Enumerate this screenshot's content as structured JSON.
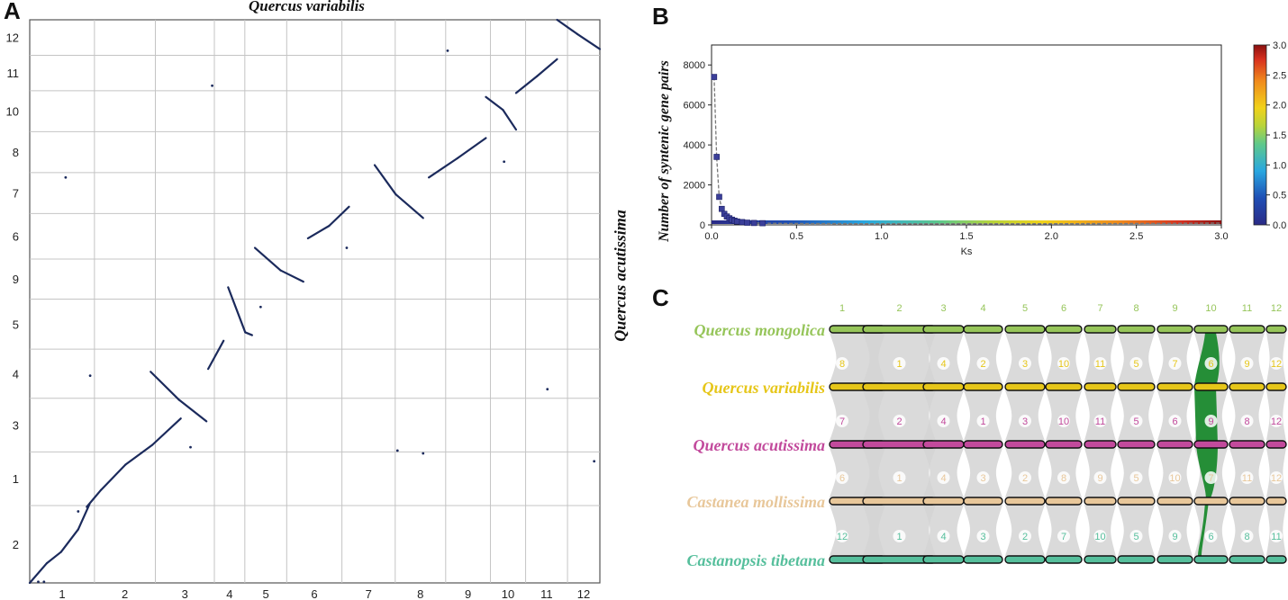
{
  "panels": {
    "a": {
      "label": "A",
      "title": "Quercus variabilis",
      "ylabel": "Quercus acutissima"
    },
    "b": {
      "label": "B"
    },
    "c": {
      "label": "C"
    }
  },
  "chart_data": [
    {
      "id": "A",
      "type": "scatter",
      "subtype": "dotplot",
      "title": "Quercus variabilis",
      "xlabel": "Quercus variabilis",
      "ylabel": "Quercus acutissima",
      "x_chromosomes": [
        "1",
        "2",
        "3",
        "4",
        "5",
        "6",
        "7",
        "8",
        "9",
        "10",
        "11",
        "12"
      ],
      "x_chrom_sizes": [
        68,
        64,
        62,
        32,
        44,
        58,
        56,
        53,
        47,
        37,
        44,
        34
      ],
      "y_chromosomes_bottom_to_top": [
        "2",
        "1",
        "3",
        "4",
        "5",
        "9",
        "6",
        "7",
        "8",
        "10",
        "11",
        "12"
      ],
      "y_chrom_sizes": [
        85,
        59,
        59,
        54,
        55,
        44,
        50,
        45,
        45,
        45,
        39,
        39
      ],
      "dot_color": "#1b2a5c",
      "segments": [
        {
          "x": [
            0.0,
            0.03
          ],
          "y": [
            0.0,
            0.035
          ]
        },
        {
          "x": [
            0.03,
            0.055
          ],
          "y": [
            0.035,
            0.055
          ]
        },
        {
          "x": [
            0.055,
            0.085
          ],
          "y": [
            0.055,
            0.095
          ]
        },
        {
          "x": [
            0.085,
            0.105
          ],
          "y": [
            0.095,
            0.14
          ]
        },
        {
          "x": [
            0.1,
            0.125
          ],
          "y": [
            0.135,
            0.165
          ]
        },
        {
          "x": [
            0.125,
            0.168
          ],
          "y": [
            0.165,
            0.21
          ]
        },
        {
          "x": [
            0.168,
            0.215
          ],
          "y": [
            0.21,
            0.245
          ]
        },
        {
          "x": [
            0.215,
            0.265
          ],
          "y": [
            0.245,
            0.292
          ]
        },
        {
          "x": [
            0.212,
            0.262
          ],
          "y": [
            0.375,
            0.325
          ]
        },
        {
          "x": [
            0.262,
            0.31
          ],
          "y": [
            0.325,
            0.287
          ]
        },
        {
          "x": [
            0.313,
            0.34
          ],
          "y": [
            0.38,
            0.43
          ]
        },
        {
          "x": [
            0.348,
            0.378
          ],
          "y": [
            0.525,
            0.445
          ]
        },
        {
          "x": [
            0.378,
            0.39
          ],
          "y": [
            0.445,
            0.44
          ]
        },
        {
          "x": [
            0.395,
            0.44
          ],
          "y": [
            0.595,
            0.555
          ]
        },
        {
          "x": [
            0.44,
            0.48
          ],
          "y": [
            0.555,
            0.535
          ]
        },
        {
          "x": [
            0.488,
            0.525
          ],
          "y": [
            0.612,
            0.634
          ]
        },
        {
          "x": [
            0.525,
            0.56
          ],
          "y": [
            0.634,
            0.668
          ]
        },
        {
          "x": [
            0.605,
            0.642
          ],
          "y": [
            0.742,
            0.69
          ]
        },
        {
          "x": [
            0.642,
            0.69
          ],
          "y": [
            0.69,
            0.648
          ]
        },
        {
          "x": [
            0.7,
            0.75
          ],
          "y": [
            0.72,
            0.754
          ]
        },
        {
          "x": [
            0.75,
            0.8
          ],
          "y": [
            0.754,
            0.79
          ]
        },
        {
          "x": [
            0.8,
            0.83
          ],
          "y": [
            0.863,
            0.84
          ]
        },
        {
          "x": [
            0.83,
            0.853
          ],
          "y": [
            0.84,
            0.805
          ]
        },
        {
          "x": [
            0.853,
            0.89
          ],
          "y": [
            0.87,
            0.9
          ]
        },
        {
          "x": [
            0.89,
            0.925
          ],
          "y": [
            0.9,
            0.93
          ]
        },
        {
          "x": [
            0.925,
            0.96
          ],
          "y": [
            1.0,
            0.975
          ]
        },
        {
          "x": [
            0.96,
            1.0
          ],
          "y": [
            0.975,
            0.948
          ]
        }
      ],
      "dots": [
        {
          "x": 0.063,
          "y": 0.72
        },
        {
          "x": 0.106,
          "y": 0.368
        },
        {
          "x": 0.32,
          "y": 0.883
        },
        {
          "x": 0.405,
          "y": 0.49
        },
        {
          "x": 0.282,
          "y": 0.241
        },
        {
          "x": 0.556,
          "y": 0.595
        },
        {
          "x": 0.645,
          "y": 0.235
        },
        {
          "x": 0.69,
          "y": 0.23
        },
        {
          "x": 0.733,
          "y": 0.945
        },
        {
          "x": 0.832,
          "y": 0.748
        },
        {
          "x": 0.908,
          "y": 0.344
        },
        {
          "x": 0.99,
          "y": 0.216
        },
        {
          "x": 0.085,
          "y": 0.127
        },
        {
          "x": 0.015,
          "y": 0.002
        },
        {
          "x": 0.025,
          "y": 0.002
        }
      ]
    },
    {
      "id": "B",
      "type": "scatter",
      "subtype": "line-with-colored-markers",
      "title": "",
      "xlabel": "Ks",
      "ylabel": "Number of syntenic gene pairs",
      "xlim": [
        0,
        3.0
      ],
      "ylim": [
        0,
        9000
      ],
      "xticks": [
        "0.0",
        "0.5",
        "1.0",
        "1.5",
        "2.0",
        "2.5",
        "3.0"
      ],
      "yticks": [
        "0",
        "2000",
        "4000",
        "6000",
        "8000"
      ],
      "colorbar": {
        "min": 0.0,
        "max": 3.0,
        "ticks": [
          "0.0",
          "0.5",
          "1.0",
          "1.5",
          "2.0",
          "2.5",
          "3.0"
        ]
      },
      "x": [
        0.015,
        0.03,
        0.045,
        0.06,
        0.075,
        0.09,
        0.105,
        0.12,
        0.135,
        0.15,
        0.18,
        0.21,
        0.25,
        0.3,
        0.4,
        0.5,
        0.75,
        1.0,
        1.25,
        1.5,
        1.75,
        2.0,
        2.25,
        2.5,
        2.75,
        3.0
      ],
      "y": [
        7400,
        3400,
        1400,
        800,
        550,
        420,
        330,
        260,
        210,
        170,
        140,
        110,
        95,
        85,
        75,
        70,
        65,
        60,
        60,
        60,
        60,
        60,
        65,
        70,
        80,
        90
      ]
    },
    {
      "id": "C",
      "type": "other",
      "subtype": "synteny-karyotype",
      "species": [
        {
          "name": "Quercus mongolica",
          "color": "#96c55a",
          "chromosomes": [
            "1",
            "2",
            "3",
            "4",
            "5",
            "6",
            "7",
            "8",
            "9",
            "10",
            "11",
            "12"
          ]
        },
        {
          "name": "Quercus variabilis",
          "color": "#e6c619",
          "chromosomes": [
            "8",
            "1",
            "4",
            "2",
            "3",
            "10",
            "11",
            "5",
            "7",
            "6",
            "9",
            "12"
          ]
        },
        {
          "name": "Quercus acutissima",
          "color": "#c24a9c",
          "chromosomes": [
            "7",
            "2",
            "4",
            "1",
            "3",
            "10",
            "11",
            "5",
            "6",
            "9",
            "8",
            "12"
          ]
        },
        {
          "name": "Castanea mollissima",
          "color": "#e8c79a",
          "chromosomes": [
            "6",
            "1",
            "4",
            "3",
            "2",
            "8",
            "9",
            "5",
            "10",
            "7",
            "11",
            "12"
          ]
        },
        {
          "name": "Castanopsis tibetana",
          "color": "#56bf9c",
          "chromosomes": [
            "12",
            "1",
            "4",
            "3",
            "2",
            "7",
            "10",
            "5",
            "9",
            "6",
            "8",
            "11"
          ]
        }
      ],
      "highlight_color": "#1b8a2e"
    }
  ]
}
